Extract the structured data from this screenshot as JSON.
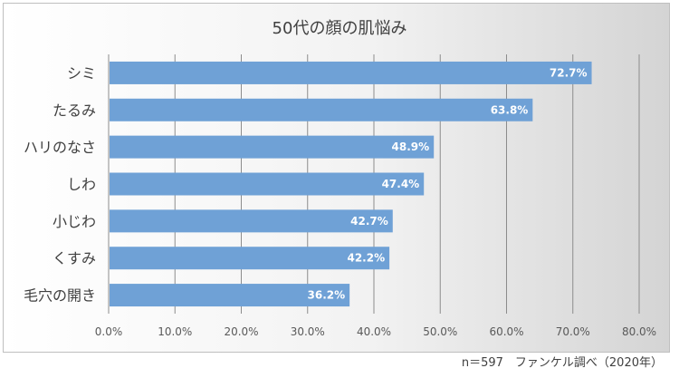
{
  "chart_data": {
    "type": "bar",
    "orientation": "horizontal",
    "title": "50代の顔の肌悩み",
    "categories": [
      "シミ",
      "たるみ",
      "ハリのなさ",
      "しわ",
      "小じわ",
      "くすみ",
      "毛穴の開き"
    ],
    "values": [
      72.7,
      63.8,
      48.9,
      47.4,
      42.7,
      42.2,
      36.2
    ],
    "data_labels": [
      "72.7%",
      "63.8%",
      "48.9%",
      "47.4%",
      "42.7%",
      "42.2%",
      "36.2%"
    ],
    "xlim": [
      0,
      80
    ],
    "x_ticks": [
      "0.0%",
      "10.0%",
      "20.0%",
      "30.0%",
      "40.0%",
      "50.0%",
      "60.0%",
      "70.0%",
      "80.0%"
    ],
    "grid": true,
    "bar_color": "#6fa1d6",
    "source_note": "n＝597　ファンケル調べ（2020年）"
  }
}
